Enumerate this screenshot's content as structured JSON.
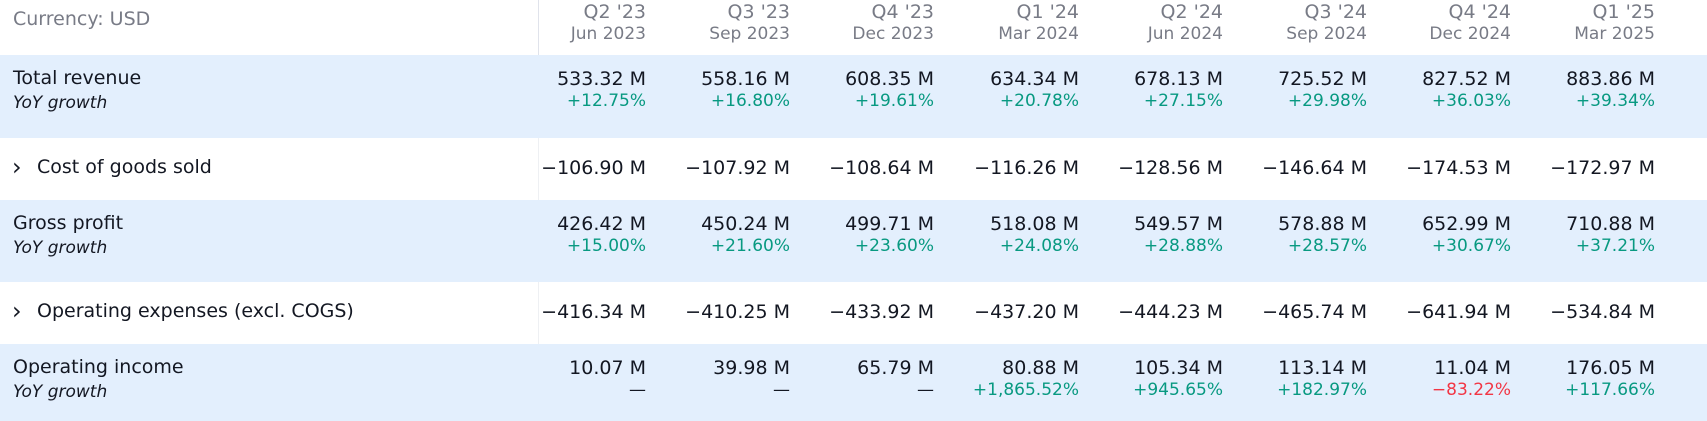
{
  "currency_label": "Currency: USD",
  "colors": {
    "positive": "#089981",
    "negative": "#f23645",
    "row_highlight": "#e3effd",
    "muted": "#787b86"
  },
  "columns": [
    {
      "quarter": "Q2 '23",
      "date": "Jun 2023"
    },
    {
      "quarter": "Q3 '23",
      "date": "Sep 2023"
    },
    {
      "quarter": "Q4 '23",
      "date": "Dec 2023"
    },
    {
      "quarter": "Q1 '24",
      "date": "Mar 2024"
    },
    {
      "quarter": "Q2 '24",
      "date": "Jun 2024"
    },
    {
      "quarter": "Q3 '24",
      "date": "Sep 2024"
    },
    {
      "quarter": "Q4 '24",
      "date": "Dec 2024"
    },
    {
      "quarter": "Q1 '25",
      "date": "Mar 2025"
    }
  ],
  "rows": [
    {
      "label": "Total revenue",
      "sub_label": "YoY growth",
      "expandable": false,
      "values": [
        "533.32 M",
        "558.16 M",
        "608.35 M",
        "634.34 M",
        "678.13 M",
        "725.52 M",
        "827.52 M",
        "883.86 M"
      ],
      "growth": [
        "+12.75%",
        "+16.80%",
        "+19.61%",
        "+20.78%",
        "+27.15%",
        "+29.98%",
        "+36.03%",
        "+39.34%"
      ]
    },
    {
      "label": "Cost of goods sold",
      "expandable": true,
      "chevron_icon": "chevron-right-icon",
      "values": [
        "−106.90 M",
        "−107.92 M",
        "−108.64 M",
        "−116.26 M",
        "−128.56 M",
        "−146.64 M",
        "−174.53 M",
        "−172.97 M"
      ]
    },
    {
      "label": "Gross profit",
      "sub_label": "YoY growth",
      "expandable": false,
      "values": [
        "426.42 M",
        "450.24 M",
        "499.71 M",
        "518.08 M",
        "549.57 M",
        "578.88 M",
        "652.99 M",
        "710.88 M"
      ],
      "growth": [
        "+15.00%",
        "+21.60%",
        "+23.60%",
        "+24.08%",
        "+28.88%",
        "+28.57%",
        "+30.67%",
        "+37.21%"
      ]
    },
    {
      "label": "Operating expenses (excl. COGS)",
      "expandable": true,
      "chevron_icon": "chevron-right-icon",
      "values": [
        "−416.34 M",
        "−410.25 M",
        "−433.92 M",
        "−437.20 M",
        "−444.23 M",
        "−465.74 M",
        "−641.94 M",
        "−534.84 M"
      ]
    },
    {
      "label": "Operating income",
      "sub_label": "YoY growth",
      "expandable": false,
      "values": [
        "10.07 M",
        "39.98 M",
        "65.79 M",
        "80.88 M",
        "105.34 M",
        "113.14 M",
        "11.04 M",
        "176.05 M"
      ],
      "growth": [
        "—",
        "—",
        "—",
        "+1,865.52%",
        "+945.65%",
        "+182.97%",
        "−83.22%",
        "+117.66%"
      ]
    }
  ]
}
